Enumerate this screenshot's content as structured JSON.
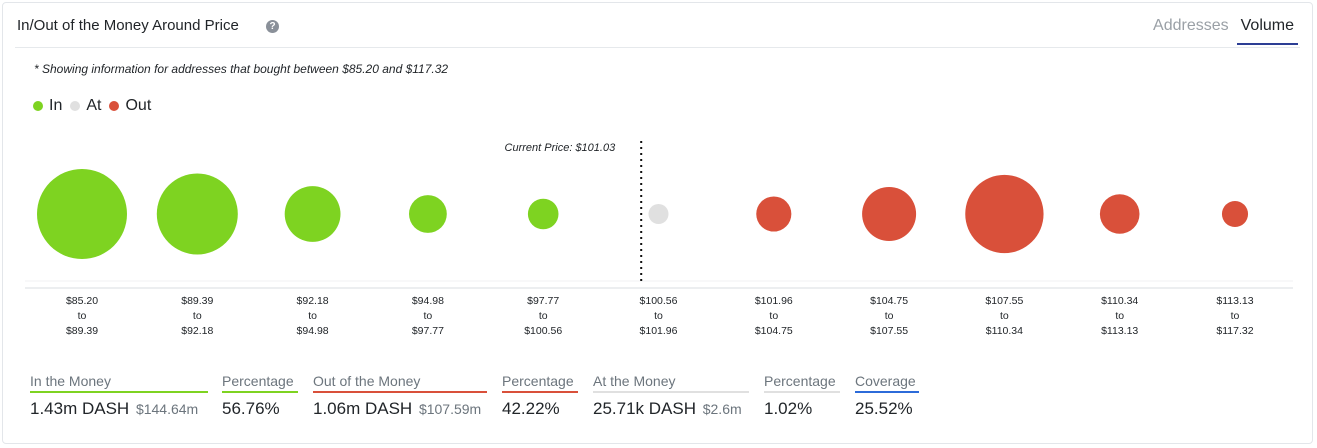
{
  "header": {
    "title": "In/Out of the Money Around Price",
    "help_icon": "question-circle-icon",
    "tabs": [
      "Addresses",
      "Volume"
    ],
    "active_tab": "Volume"
  },
  "note": "* Showing information for addresses that bought between $85.20 and $117.32",
  "legend": [
    {
      "label": "In",
      "color": "#7ed321"
    },
    {
      "label": "At",
      "color": "#e0e0e0"
    },
    {
      "label": "Out",
      "color": "#d9503a"
    }
  ],
  "chart_data": {
    "type": "scatter",
    "title": "",
    "current_price_label": "Current Price: $101.03",
    "current_price_after_index": 4,
    "to_word": "to",
    "buckets": [
      {
        "from": "$85.20",
        "to": "$89.39",
        "status": "in",
        "relative_size": 1.0
      },
      {
        "from": "$89.39",
        "to": "$92.18",
        "status": "in",
        "relative_size": 0.9
      },
      {
        "from": "$92.18",
        "to": "$94.98",
        "status": "in",
        "relative_size": 0.62
      },
      {
        "from": "$94.98",
        "to": "$97.77",
        "status": "in",
        "relative_size": 0.42
      },
      {
        "from": "$97.77",
        "to": "$100.56",
        "status": "in",
        "relative_size": 0.34
      },
      {
        "from": "$100.56",
        "to": "$101.96",
        "status": "at",
        "relative_size": 0.05
      },
      {
        "from": "$101.96",
        "to": "$104.75",
        "status": "out",
        "relative_size": 0.39
      },
      {
        "from": "$104.75",
        "to": "$107.55",
        "status": "out",
        "relative_size": 0.6
      },
      {
        "from": "$107.55",
        "to": "$110.34",
        "status": "out",
        "relative_size": 0.87
      },
      {
        "from": "$110.34",
        "to": "$113.13",
        "status": "out",
        "relative_size": 0.44
      },
      {
        "from": "$113.13",
        "to": "$117.32",
        "status": "out",
        "relative_size": 0.29
      }
    ],
    "colors": {
      "in": "#7ed321",
      "at": "#e0e0e0",
      "out": "#d9503a"
    }
  },
  "summary": {
    "in": {
      "label": "In the Money",
      "value": "1.43m DASH",
      "sub": "$144.64m",
      "color": "#7ed321"
    },
    "in_pct": {
      "label": "Percentage",
      "value": "56.76%",
      "color": "#7ed321"
    },
    "out": {
      "label": "Out of the Money",
      "value": "1.06m DASH",
      "sub": "$107.59m",
      "color": "#d9503a"
    },
    "out_pct": {
      "label": "Percentage",
      "value": "42.22%",
      "color": "#d9503a"
    },
    "at": {
      "label": "At the Money",
      "value": "25.71k DASH",
      "sub": "$2.6m",
      "color": "#e0e0e0"
    },
    "at_pct": {
      "label": "Percentage",
      "value": "1.02%",
      "color": "#e0e0e0"
    },
    "coverage": {
      "label": "Coverage",
      "value": "25.52%",
      "color": "#2c6bd9"
    }
  }
}
